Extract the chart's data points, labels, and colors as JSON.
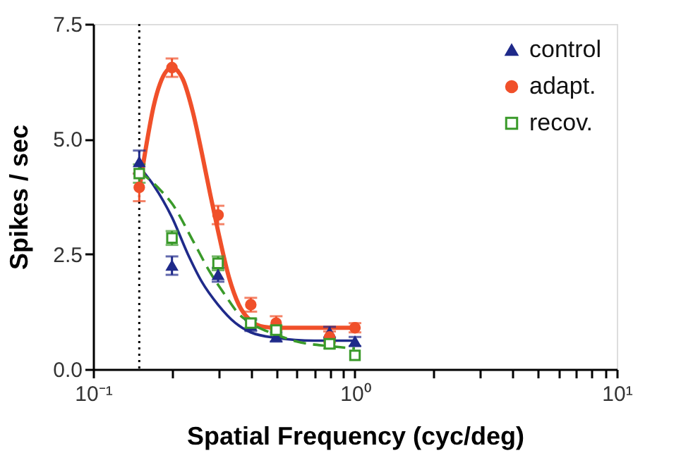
{
  "chart_data": {
    "type": "scatter",
    "xlabel": "Spatial Frequency (cyc/deg)",
    "ylabel": "Spikes / sec",
    "log": "x",
    "xlim": [
      0.1,
      10
    ],
    "ylim": [
      0,
      7.5
    ],
    "xticks": [
      {
        "value": 0.1,
        "label": "10⁻¹"
      },
      {
        "value": 0.2,
        "label": null
      },
      {
        "value": 0.3,
        "label": null
      },
      {
        "value": 0.4,
        "label": null
      },
      {
        "value": 0.5,
        "label": null
      },
      {
        "value": 0.6,
        "label": null
      },
      {
        "value": 0.7,
        "label": null
      },
      {
        "value": 0.8,
        "label": null
      },
      {
        "value": 0.9,
        "label": null
      },
      {
        "value": 1,
        "label": "10⁰"
      },
      {
        "value": 2,
        "label": null
      },
      {
        "value": 3,
        "label": null
      },
      {
        "value": 4,
        "label": null
      },
      {
        "value": 5,
        "label": null
      },
      {
        "value": 6,
        "label": null
      },
      {
        "value": 7,
        "label": null
      },
      {
        "value": 8,
        "label": null
      },
      {
        "value": 9,
        "label": null
      },
      {
        "value": 10,
        "label": "10¹"
      }
    ],
    "yticks": [
      {
        "value": 0,
        "label": "0.0"
      },
      {
        "value": 2.5,
        "label": "2.5"
      },
      {
        "value": 5,
        "label": "5.0"
      },
      {
        "value": 7.5,
        "label": "7.5"
      }
    ],
    "grid": false,
    "legend": "top right",
    "ref_lines": [
      {
        "axis": "x",
        "value": 0.15,
        "color": "#000000",
        "line_style": "dotted"
      }
    ],
    "series": [
      {
        "type": "line",
        "color": "#f0502a",
        "line_style": "solid",
        "x": [
          0.15,
          0.16,
          0.17,
          0.18,
          0.2,
          0.22,
          0.24,
          0.26,
          0.28,
          0.3,
          0.33,
          0.36,
          0.4,
          0.45,
          0.5,
          1.0
        ],
        "values": [
          3.9,
          4.9,
          5.7,
          6.2,
          6.55,
          6.3,
          5.6,
          4.7,
          3.8,
          3.0,
          2.0,
          1.4,
          1.05,
          0.92,
          0.9,
          0.9
        ]
      },
      {
        "type": "line",
        "color": "#1f2a8a",
        "line_style": "solid",
        "x": [
          0.15,
          0.17,
          0.2,
          0.23,
          0.26,
          0.3,
          0.35,
          0.4,
          0.5,
          0.7,
          1.0
        ],
        "values": [
          4.4,
          4.0,
          3.3,
          2.5,
          1.9,
          1.4,
          1.0,
          0.8,
          0.68,
          0.62,
          0.62
        ]
      },
      {
        "type": "line",
        "color": "#3a9a2a",
        "line_style": "dashed",
        "x": [
          0.15,
          0.18,
          0.2,
          0.24,
          0.28,
          0.32,
          0.36,
          0.4,
          0.5,
          0.6,
          0.8,
          1.0
        ],
        "values": [
          4.3,
          3.9,
          3.6,
          2.8,
          2.1,
          1.6,
          1.2,
          1.0,
          0.75,
          0.6,
          0.5,
          0.45
        ]
      },
      {
        "type": "scatter",
        "name": "control",
        "color": "#1f2a8a",
        "marker": "triangle",
        "x": [
          0.15,
          0.2,
          0.3,
          0.4,
          0.5,
          0.8,
          1.0
        ],
        "values": [
          4.5,
          2.25,
          2.05,
          0.95,
          0.7,
          0.8,
          0.6
        ],
        "errors": [
          0.25,
          0.2,
          0.15,
          0.12,
          0.1,
          0.12,
          0.1
        ]
      },
      {
        "type": "scatter",
        "name": "adapt.",
        "color": "#f0502a",
        "marker": "circle",
        "x": [
          0.15,
          0.2,
          0.3,
          0.4,
          0.5,
          0.8,
          1.0
        ],
        "values": [
          3.95,
          6.55,
          3.35,
          1.4,
          1.0,
          0.7,
          0.9
        ],
        "errors": [
          0.3,
          0.2,
          0.2,
          0.15,
          0.15,
          0.12,
          0.1
        ]
      },
      {
        "type": "scatter",
        "name": "recov.",
        "color": "#3a9a2a",
        "marker": "square",
        "x": [
          0.15,
          0.2,
          0.3,
          0.4,
          0.5,
          0.8,
          1.0
        ],
        "values": [
          4.25,
          2.85,
          2.3,
          1.0,
          0.85,
          0.55,
          0.3
        ],
        "errors": [
          0.2,
          0.15,
          0.15,
          0.1,
          0.1,
          0.1,
          null
        ]
      }
    ]
  }
}
